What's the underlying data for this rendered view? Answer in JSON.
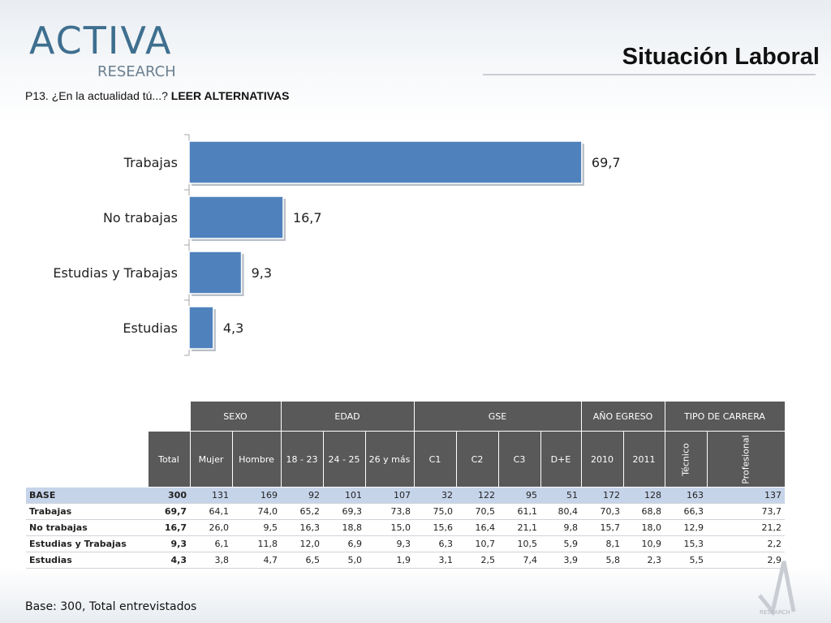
{
  "header": {
    "logo_text": "ACTIVA",
    "logo_subtext": "RESEARCH",
    "title": "Situación Laboral",
    "question_prefix": "P13. ¿En la actualidad tú...? ",
    "question_strong": "LEER ALTERNATIVAS"
  },
  "colors": {
    "bar": "#4f81bd",
    "header_fill": "#595959",
    "base_row": "#c6d4ea"
  },
  "chart_data": {
    "type": "bar",
    "orientation": "horizontal",
    "categories": [
      "Trabajas",
      "No trabajas",
      "Estudias y Trabajas",
      "Estudias"
    ],
    "values": [
      69.7,
      16.7,
      9.3,
      4.3
    ],
    "value_labels": [
      "69,7",
      "16,7",
      "9,3",
      "4,3"
    ],
    "xlim": [
      0,
      70
    ]
  },
  "table": {
    "groups": [
      {
        "label": "SEXO",
        "span": 2
      },
      {
        "label": "EDAD",
        "span": 3
      },
      {
        "label": "GSE",
        "span": 4
      },
      {
        "label": "AÑO EGRESO",
        "span": 2
      },
      {
        "label": "TIPO DE CARRERA",
        "span": 2
      }
    ],
    "columns": [
      "Total",
      "Mujer",
      "Hombre",
      "18 - 23",
      "24 - 25",
      "26 y más",
      "C1",
      "C2",
      "C3",
      "D+E",
      "2010",
      "2011",
      "Técnico",
      "Profesional"
    ],
    "rows": [
      {
        "label": "BASE",
        "values": [
          "300",
          "131",
          "169",
          "92",
          "101",
          "107",
          "32",
          "122",
          "95",
          "51",
          "172",
          "128",
          "163",
          "137"
        ]
      },
      {
        "label": "Trabajas",
        "values": [
          "69,7",
          "64,1",
          "74,0",
          "65,2",
          "69,3",
          "73,8",
          "75,0",
          "70,5",
          "61,1",
          "80,4",
          "70,3",
          "68,8",
          "66,3",
          "73,7"
        ]
      },
      {
        "label": "No trabajas",
        "values": [
          "16,7",
          "26,0",
          "9,5",
          "16,3",
          "18,8",
          "15,0",
          "15,6",
          "16,4",
          "21,1",
          "9,8",
          "15,7",
          "18,0",
          "12,9",
          "21,2"
        ]
      },
      {
        "label": "Estudias y Trabajas",
        "values": [
          "9,3",
          "6,1",
          "11,8",
          "12,0",
          "6,9",
          "9,3",
          "6,3",
          "10,7",
          "10,5",
          "5,9",
          "8,1",
          "10,9",
          "15,3",
          "2,2"
        ]
      },
      {
        "label": "Estudias",
        "values": [
          "4,3",
          "3,8",
          "4,7",
          "6,5",
          "5,0",
          "1,9",
          "3,1",
          "2,5",
          "7,4",
          "3,9",
          "5,8",
          "2,3",
          "5,5",
          "2,9"
        ]
      }
    ]
  },
  "footer": {
    "base_note": "Base: 300, Total entrevistados",
    "mark_text": "RESEARCH"
  }
}
